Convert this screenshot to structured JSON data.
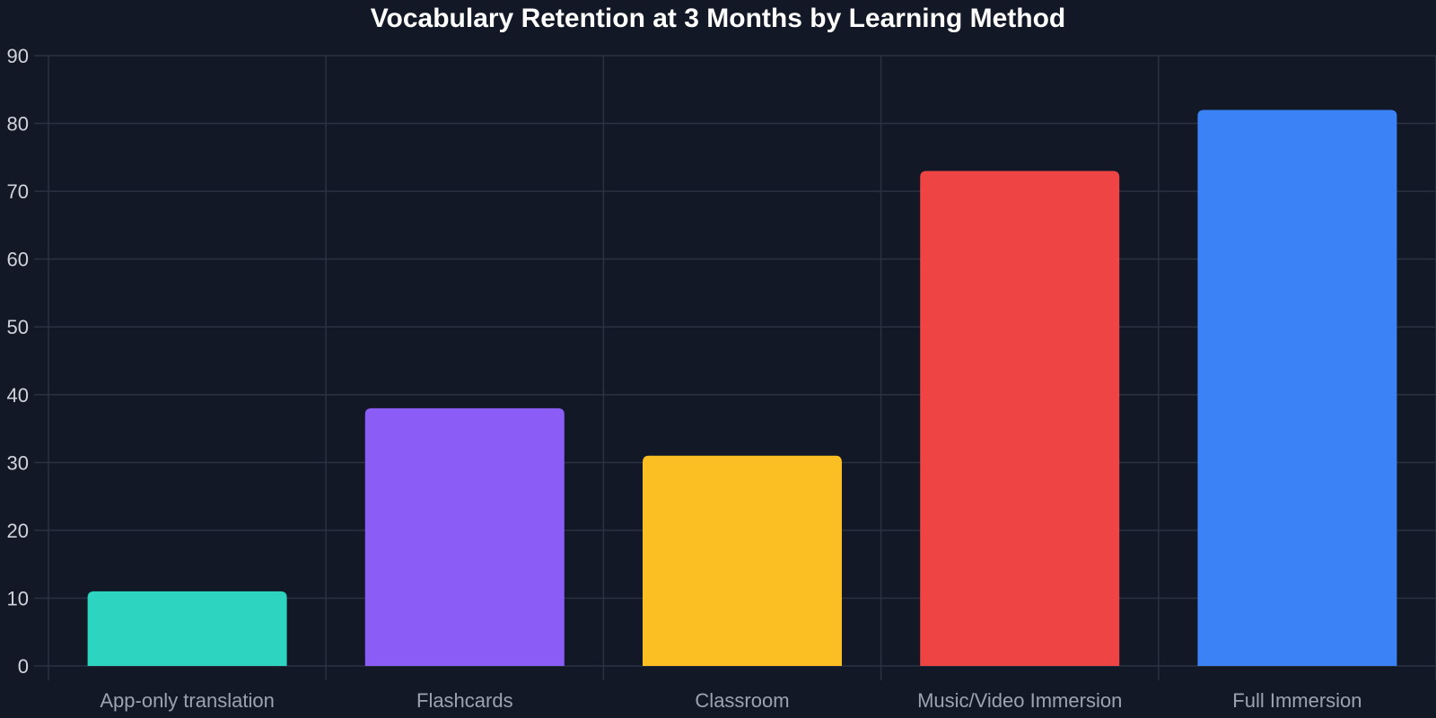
{
  "chart_data": {
    "type": "bar",
    "title": "Vocabulary Retention at 3 Months by Learning Method",
    "xlabel": "",
    "ylabel": "",
    "categories": [
      "App-only translation",
      "Flashcards",
      "Classroom",
      "Music/Video Immersion",
      "Full Immersion"
    ],
    "values": [
      11,
      38,
      31,
      73,
      82
    ],
    "colors": [
      "#2dd4bf",
      "#8b5cf6",
      "#fbbf24",
      "#ef4444",
      "#3b82f6"
    ],
    "ylim": [
      0,
      90
    ],
    "yticks": [
      0,
      10,
      20,
      30,
      40,
      50,
      60,
      70,
      80,
      90
    ],
    "grid": true,
    "legend": "none"
  }
}
